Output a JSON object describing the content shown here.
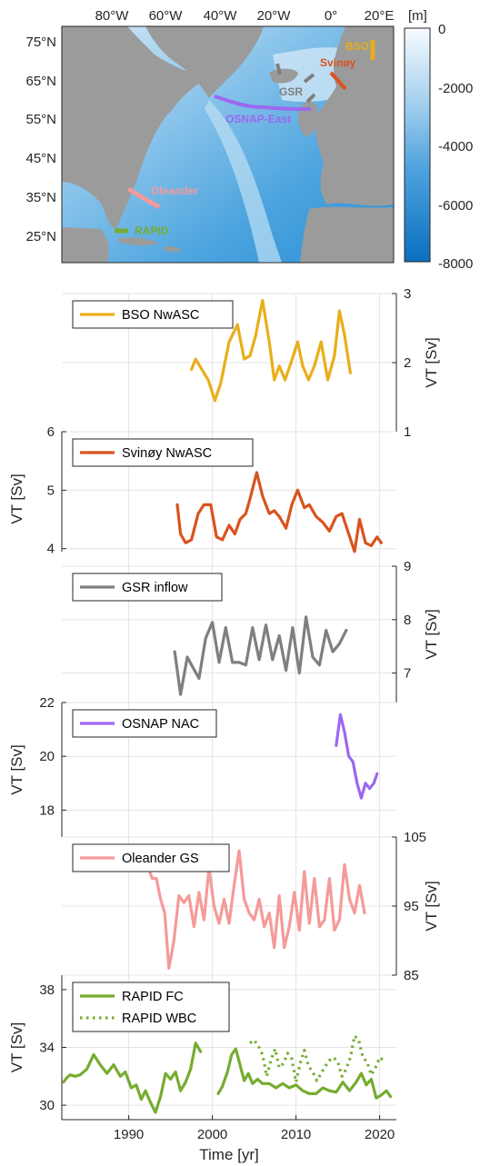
{
  "map": {
    "lon_ticks": [
      "80°W",
      "60°W",
      "40°W",
      "20°W",
      "0°",
      "20°E"
    ],
    "lat_ticks": [
      "75°N",
      "65°N",
      "55°N",
      "45°N",
      "35°N",
      "25°N"
    ],
    "colorbar": {
      "unit": "[m]",
      "ticks": [
        "0",
        "-2000",
        "-4000",
        "-6000",
        "-8000"
      ],
      "range": [
        -8000,
        0
      ]
    },
    "sections": [
      {
        "label": "BSO",
        "color": "#e8ae1c"
      },
      {
        "label": "Svinøy",
        "color": "#d9531e"
      },
      {
        "label": "GSR",
        "color": "#7f7f7f"
      },
      {
        "label": "OSNAP-East",
        "color": "#9d67f0"
      },
      {
        "label": "Oleander",
        "color": "#f59a9a"
      },
      {
        "label": "RAPID",
        "color": "#77ac30"
      }
    ]
  },
  "chart_data": [
    {
      "type": "line",
      "ylabel": "VT [Sv]",
      "ylim": [
        1,
        3
      ],
      "yticks": [
        "1",
        "2",
        "3"
      ],
      "y_axis_side": "right",
      "xlim": [
        1982,
        2022
      ],
      "grid": true,
      "legend": "top-left",
      "series": [
        {
          "name": "BSO NwASC",
          "color": "#e8ae1c",
          "style": "solid",
          "x": [
            1997.5,
            1998,
            1998.5,
            1999.5,
            2000.3,
            2001,
            2002,
            2003,
            2003.8,
            2004.5,
            2005.2,
            2006,
            2006.8,
            2007.4,
            2008,
            2008.7,
            2009.4,
            2010.2,
            2010.8,
            2011.5,
            2012.2,
            2013,
            2013.8,
            2014.6,
            2015.2,
            2015.8,
            2016.5
          ],
          "y": [
            1.9,
            2.05,
            1.95,
            1.75,
            1.45,
            1.7,
            2.3,
            2.55,
            2.05,
            2.1,
            2.4,
            2.9,
            2.3,
            1.75,
            1.95,
            1.75,
            2.0,
            2.3,
            1.95,
            1.75,
            1.95,
            2.3,
            1.75,
            2.1,
            2.75,
            2.4,
            1.85
          ]
        }
      ]
    },
    {
      "type": "line",
      "ylabel": "VT [Sv]",
      "ylim": [
        3.7,
        6
      ],
      "yticks": [
        "4",
        "5",
        "6"
      ],
      "y_axis_side": "left",
      "xlim": [
        1982,
        2022
      ],
      "grid": true,
      "legend": "top-left",
      "series": [
        {
          "name": "Svinøy NwASC",
          "color": "#d9531e",
          "style": "solid",
          "x": [
            1995.8,
            1996.2,
            1996.8,
            1997.5,
            1998.3,
            1999,
            1999.8,
            2000.5,
            2001.2,
            2002,
            2002.7,
            2003.3,
            2004,
            2004.5,
            2005.3,
            2006,
            2006.8,
            2007.4,
            2008,
            2008.8,
            2009.5,
            2010.2,
            2011,
            2011.6,
            2012.4,
            2013.2,
            2014,
            2014.8,
            2015.5,
            2016.2,
            2017,
            2017.6,
            2018.3,
            2019,
            2019.7,
            2020.2
          ],
          "y": [
            4.75,
            4.25,
            4.1,
            4.15,
            4.6,
            4.75,
            4.75,
            4.2,
            4.15,
            4.4,
            4.25,
            4.5,
            4.6,
            4.85,
            5.3,
            4.9,
            4.6,
            4.65,
            4.55,
            4.35,
            4.75,
            5.0,
            4.7,
            4.75,
            4.55,
            4.45,
            4.3,
            4.55,
            4.6,
            4.3,
            3.95,
            4.5,
            4.1,
            4.05,
            4.2,
            4.1
          ]
        }
      ]
    },
    {
      "type": "line",
      "ylabel": "VT [Sv]",
      "ylim": [
        6.45,
        9
      ],
      "yticks": [
        "7",
        "8",
        "9"
      ],
      "y_axis_side": "right",
      "xlim": [
        1982,
        2022
      ],
      "grid": true,
      "legend": "top-left",
      "series": [
        {
          "name": "GSR inflow",
          "color": "#7f7f7f",
          "style": "solid",
          "x": [
            1995.5,
            1996.2,
            1997,
            1997.7,
            1998.4,
            1999.2,
            2000,
            2000.8,
            2001.6,
            2002.4,
            2003.2,
            2004,
            2004.8,
            2005.6,
            2006.4,
            2007.2,
            2008,
            2008.8,
            2009.6,
            2010.4,
            2011.2,
            2012,
            2012.8,
            2013.6,
            2014.4,
            2015.2,
            2016
          ],
          "y": [
            7.4,
            6.6,
            7.3,
            7.1,
            6.9,
            7.65,
            7.95,
            7.2,
            7.85,
            7.2,
            7.2,
            7.15,
            7.85,
            7.25,
            7.9,
            7.25,
            7.7,
            7.05,
            7.85,
            7.0,
            8.05,
            7.3,
            7.15,
            7.8,
            7.4,
            7.55,
            7.8
          ]
        }
      ]
    },
    {
      "type": "line",
      "ylabel": "VT [Sv]",
      "ylim": [
        17,
        22
      ],
      "yticks": [
        "18",
        "20",
        "22"
      ],
      "y_axis_side": "left",
      "xlim": [
        1982,
        2022
      ],
      "grid": true,
      "legend": "top-left",
      "series": [
        {
          "name": "OSNAP NAC",
          "color": "#9d67f0",
          "style": "solid",
          "x": [
            2014.8,
            2015.3,
            2015.8,
            2016.3,
            2016.8,
            2017.3,
            2017.8,
            2018.3,
            2018.8,
            2019.3,
            2019.7
          ],
          "y": [
            20.4,
            21.55,
            20.9,
            20.0,
            19.8,
            19.0,
            18.45,
            19.0,
            18.8,
            19.0,
            19.35
          ]
        }
      ]
    },
    {
      "type": "line",
      "ylabel": "VT [Sv]",
      "ylim": [
        85,
        105
      ],
      "yticks": [
        "85",
        "95",
        "105"
      ],
      "y_axis_side": "right",
      "xlim": [
        1982,
        2022
      ],
      "grid": true,
      "legend": "top-left",
      "series": [
        {
          "name": "Oleander GS",
          "color": "#f59a9a",
          "style": "solid",
          "x": [
            1992.2,
            1992.8,
            1993.3,
            1993.8,
            1994.3,
            1994.8,
            1995.4,
            1996,
            1996.6,
            1997.2,
            1997.8,
            1998.4,
            1999,
            1999.6,
            2000.2,
            2000.8,
            2001.4,
            2002,
            2002.6,
            2003.2,
            2003.8,
            2004.4,
            2005,
            2005.6,
            2006.2,
            2006.8,
            2007.4,
            2008,
            2008.6,
            2009.2,
            2009.8,
            2010.4,
            2011,
            2011.6,
            2012.2,
            2012.8,
            2013.4,
            2014,
            2014.6,
            2015.2,
            2015.8,
            2016.4,
            2017,
            2017.6,
            2018.2
          ],
          "y": [
            101,
            99,
            99,
            96,
            94,
            86,
            90,
            96.5,
            95.5,
            96.5,
            92,
            97,
            93,
            100.5,
            95,
            92.5,
            96,
            92.5,
            98,
            103,
            96,
            94,
            93,
            96,
            92,
            94,
            89,
            96.5,
            89,
            92,
            97,
            91.5,
            100,
            92.5,
            99,
            92,
            93,
            99,
            91.5,
            93,
            101,
            96,
            94,
            98,
            94
          ]
        }
      ]
    },
    {
      "type": "line",
      "ylabel": "VT [Sv]",
      "ylim": [
        29,
        39
      ],
      "yticks": [
        "30",
        "34",
        "38"
      ],
      "y_axis_side": "left",
      "xlabel": "Time [yr]",
      "xlim": [
        1982,
        2022
      ],
      "xticks": [
        "1990",
        "2000",
        "2010",
        "2020"
      ],
      "grid": true,
      "legend": "top-left",
      "series": [
        {
          "name": "RAPID FC",
          "color": "#77ac30",
          "style": "solid",
          "x": [
            [
              1982.2,
              1982.6,
              1983,
              1983.6,
              1984.2,
              1985,
              1985.8,
              1986.6,
              1987.4,
              1988.2,
              1989,
              1989.6,
              1990.3,
              1990.9,
              1991.5,
              1992,
              1992.6,
              1993.2,
              1993.8,
              1994.4,
              1995,
              1995.6,
              1996.2,
              1996.8,
              1997.4,
              1998,
              1998.6
            ],
            [
              2000.7,
              2001.2,
              2001.8,
              2002.3,
              2002.8,
              2003.3,
              2003.8,
              2004.3,
              2004.8,
              2005.4,
              2006,
              2006.8,
              2007.6,
              2008.4,
              2009.2,
              2010,
              2010.8,
              2011.6,
              2012.4,
              2013.2,
              2014,
              2014.8,
              2015.6,
              2016.4,
              2017.2,
              2017.8,
              2018.4,
              2019,
              2019.6,
              2020.2,
              2020.8,
              2021.3
            ]
          ],
          "y": [
            [
              31.6,
              31.9,
              32.1,
              32.0,
              32.1,
              32.5,
              33.5,
              32.8,
              32.2,
              32.8,
              32.0,
              32.3,
              31.2,
              31.4,
              30.4,
              31.0,
              30.2,
              29.5,
              30.6,
              32.2,
              31.8,
              32.3,
              31.0,
              31.6,
              32.5,
              34.3,
              33.7
            ],
            [
              30.8,
              31.3,
              32.3,
              33.5,
              33.9,
              32.8,
              31.7,
              32.2,
              31.5,
              31.8,
              31.5,
              31.5,
              31.2,
              31.5,
              31.2,
              31.4,
              31.0,
              30.8,
              30.8,
              31.2,
              31.0,
              30.9,
              31.6,
              31.0,
              31.6,
              32.2,
              31.4,
              31.8,
              30.5,
              30.7,
              31.0,
              30.6
            ]
          ]
        },
        {
          "name": "RAPID WBC",
          "color": "#77ac30",
          "style": "dotted",
          "x": [
            2004.5,
            2005,
            2005.5,
            2006,
            2006.5,
            2007,
            2007.5,
            2008,
            2008.5,
            2009,
            2009.5,
            2010,
            2010.5,
            2011,
            2011.5,
            2012,
            2012.5,
            2013,
            2013.5,
            2014,
            2014.5,
            2015,
            2015.5,
            2016,
            2016.5,
            2017,
            2017.5,
            2018,
            2018.5,
            2019,
            2019.5,
            2020,
            2020.5
          ],
          "y": [
            34.3,
            34.5,
            34.1,
            33.5,
            32.0,
            33.1,
            33.9,
            32.6,
            32.9,
            33.6,
            33.2,
            31.6,
            32.9,
            33.8,
            32.7,
            32.3,
            31.7,
            32.2,
            32.7,
            33.1,
            33.3,
            33.0,
            32.0,
            32.5,
            33.3,
            34.8,
            34.5,
            33.3,
            33.0,
            32.1,
            32.6,
            33.3,
            33.1
          ]
        }
      ]
    }
  ],
  "colors": {
    "land": "#9b9b9b",
    "grid": "#e4e4e4",
    "axis": "#262626"
  }
}
